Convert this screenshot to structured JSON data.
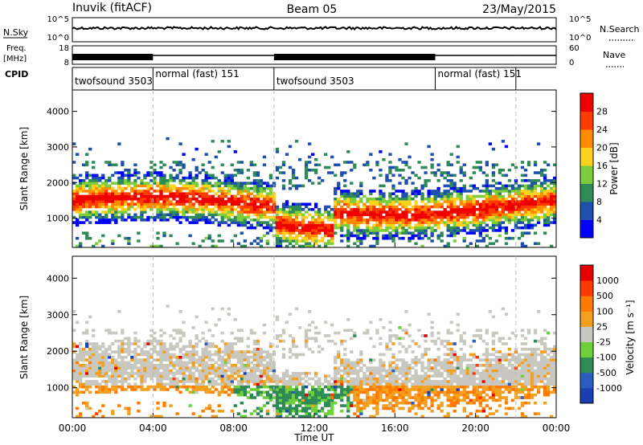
{
  "header": {
    "station": "Inuvik (fitACF)",
    "beam": "Beam 05",
    "date": "23/May/2015"
  },
  "status_panels": {
    "nsky_label": "N.Sky",
    "nsearch_label": "N.Search",
    "nsky_ticks": [
      "10^5",
      "10^0"
    ],
    "nsearch_ticks": [
      "10^5",
      "10^0"
    ],
    "freq_label": "Freq.",
    "freq_unit": "[MHz]",
    "freq_ticks": [
      "18",
      "8"
    ],
    "nave_label": "Nave",
    "nave_ticks": [
      "60",
      "0"
    ],
    "cpid_label": "CPID"
  },
  "cpid_segments": [
    {
      "label": "twofsound 3503",
      "start_hour": 0.0,
      "end_hour": 4.0
    },
    {
      "label": "normal (fast) 151",
      "start_hour": 4.0,
      "end_hour": 10.0
    },
    {
      "label": "twofsound 3503",
      "start_hour": 10.0,
      "end_hour": 18.0
    },
    {
      "label": "normal (fast) 151",
      "start_hour": 18.0,
      "end_hour": 22.0
    }
  ],
  "chart_data": [
    {
      "type": "heatmap",
      "title": "",
      "xlabel": "",
      "ylabel": "Slant Range [km]",
      "colorbar_label": "Power [dB]",
      "xlim_hours": [
        0,
        24
      ],
      "ylim": [
        180,
        4600
      ],
      "yticks": [
        1000,
        2000,
        3000,
        4000
      ],
      "colorbar_ticks": [
        "4",
        "8",
        "12",
        "16",
        "20",
        "24",
        "28"
      ],
      "colorbar_colors": [
        "#0000ff",
        "#1f4fae",
        "#2e8b57",
        "#7ccd3b",
        "#ffd21f",
        "#ff8c00",
        "#ff3c00",
        "#ee0000"
      ],
      "note_values": "power echoes concentrated 800-2200 km, strongest 1000-1600 km"
    },
    {
      "type": "heatmap",
      "title": "",
      "xlabel": "Time UT",
      "ylabel": "Slant Range [km]",
      "colorbar_label": "Velocity [m s⁻¹]",
      "xlim_hours": [
        0,
        24
      ],
      "ylim": [
        180,
        4600
      ],
      "yticks": [
        1000,
        2000,
        3000,
        4000
      ],
      "xticks": [
        "00:00",
        "04:00",
        "08:00",
        "12:00",
        "16:00",
        "20:00",
        "00:00"
      ],
      "colorbar_ticks": [
        "1000",
        "500",
        "100",
        "25",
        "-25",
        "-100",
        "-500",
        "-1000"
      ],
      "colorbar_colors": [
        "#1a3fb5",
        "#2b5cc2",
        "#2e8b57",
        "#6fd13a",
        "#c8c8c0",
        "#f3a020",
        "#ff7a00",
        "#ff3a00",
        "#e60000"
      ],
      "note_values": "mostly near-zero (grey) ionospheric scatter 1200-2200 km; ground scatter at lower ranges"
    }
  ]
}
